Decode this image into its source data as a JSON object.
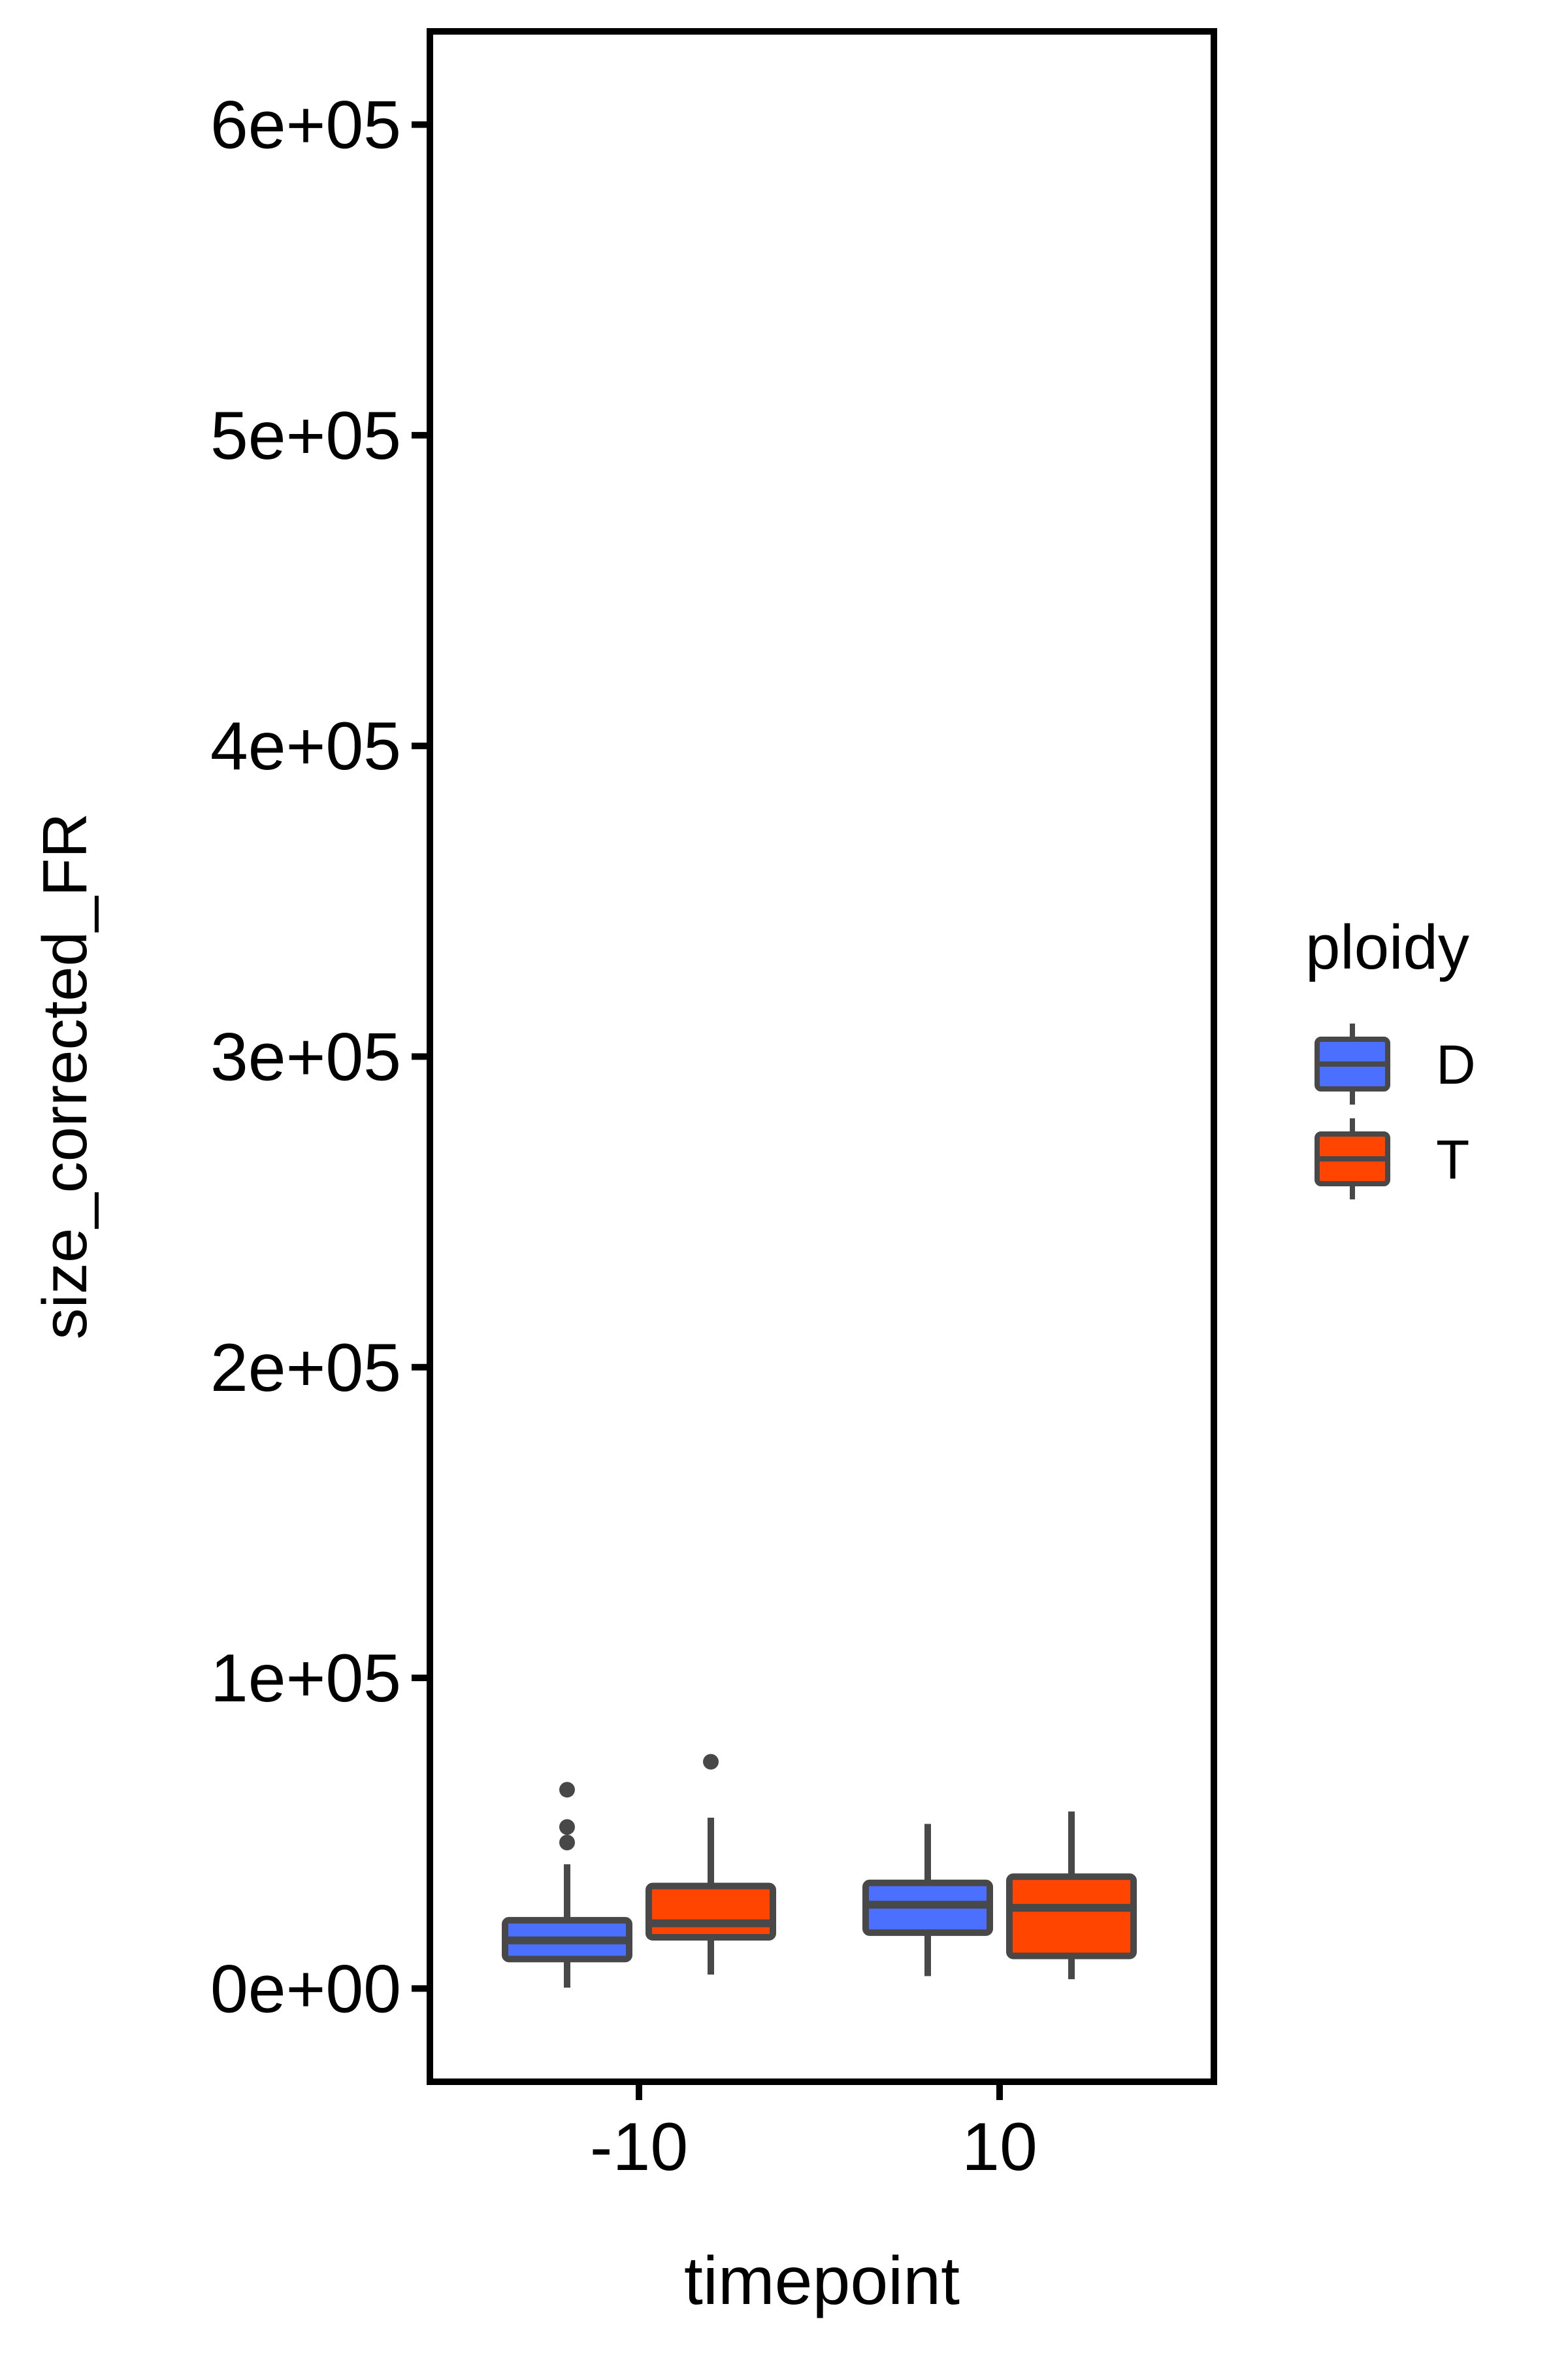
{
  "chart_data": {
    "type": "boxplot",
    "xlabel": "timepoint",
    "ylabel": "size_corrected_FR",
    "categories": [
      "-10",
      "10"
    ],
    "ylim": [
      -30000,
      630000
    ],
    "yticks": [
      0,
      100000,
      200000,
      300000,
      400000,
      500000,
      600000
    ],
    "ytick_labels": [
      "0e+00",
      "1e+05",
      "2e+05",
      "3e+05",
      "4e+05",
      "5e+05",
      "6e+05"
    ],
    "grid": false,
    "legend": {
      "title": "ploidy",
      "position": "right",
      "entries": [
        {
          "label": "D",
          "color": "#4B6FFF"
        },
        {
          "label": "T",
          "color": "#FF4500"
        }
      ]
    },
    "series": [
      {
        "name": "D",
        "color": "#4B6FFF",
        "boxes": [
          {
            "category": "-10",
            "whisker_low": 300,
            "q1": 9500,
            "median": 15500,
            "q3": 22000,
            "whisker_high": 40000,
            "outliers": [
              47000,
              52000,
              64000
            ]
          },
          {
            "category": "10",
            "whisker_low": 4000,
            "q1": 18000,
            "median": 27000,
            "q3": 34000,
            "whisker_high": 53000,
            "outliers": []
          }
        ]
      },
      {
        "name": "T",
        "color": "#FF4500",
        "boxes": [
          {
            "category": "-10",
            "whisker_low": 4500,
            "q1": 16500,
            "median": 21000,
            "q3": 33000,
            "whisker_high": 55000,
            "outliers": [
              73000
            ]
          },
          {
            "category": "10",
            "whisker_low": 3000,
            "q1": 10500,
            "median": 26000,
            "q3": 36000,
            "whisker_high": 57000,
            "outliers": []
          }
        ]
      }
    ],
    "outline_color": "#484848",
    "panel_border_color": "#000000"
  }
}
